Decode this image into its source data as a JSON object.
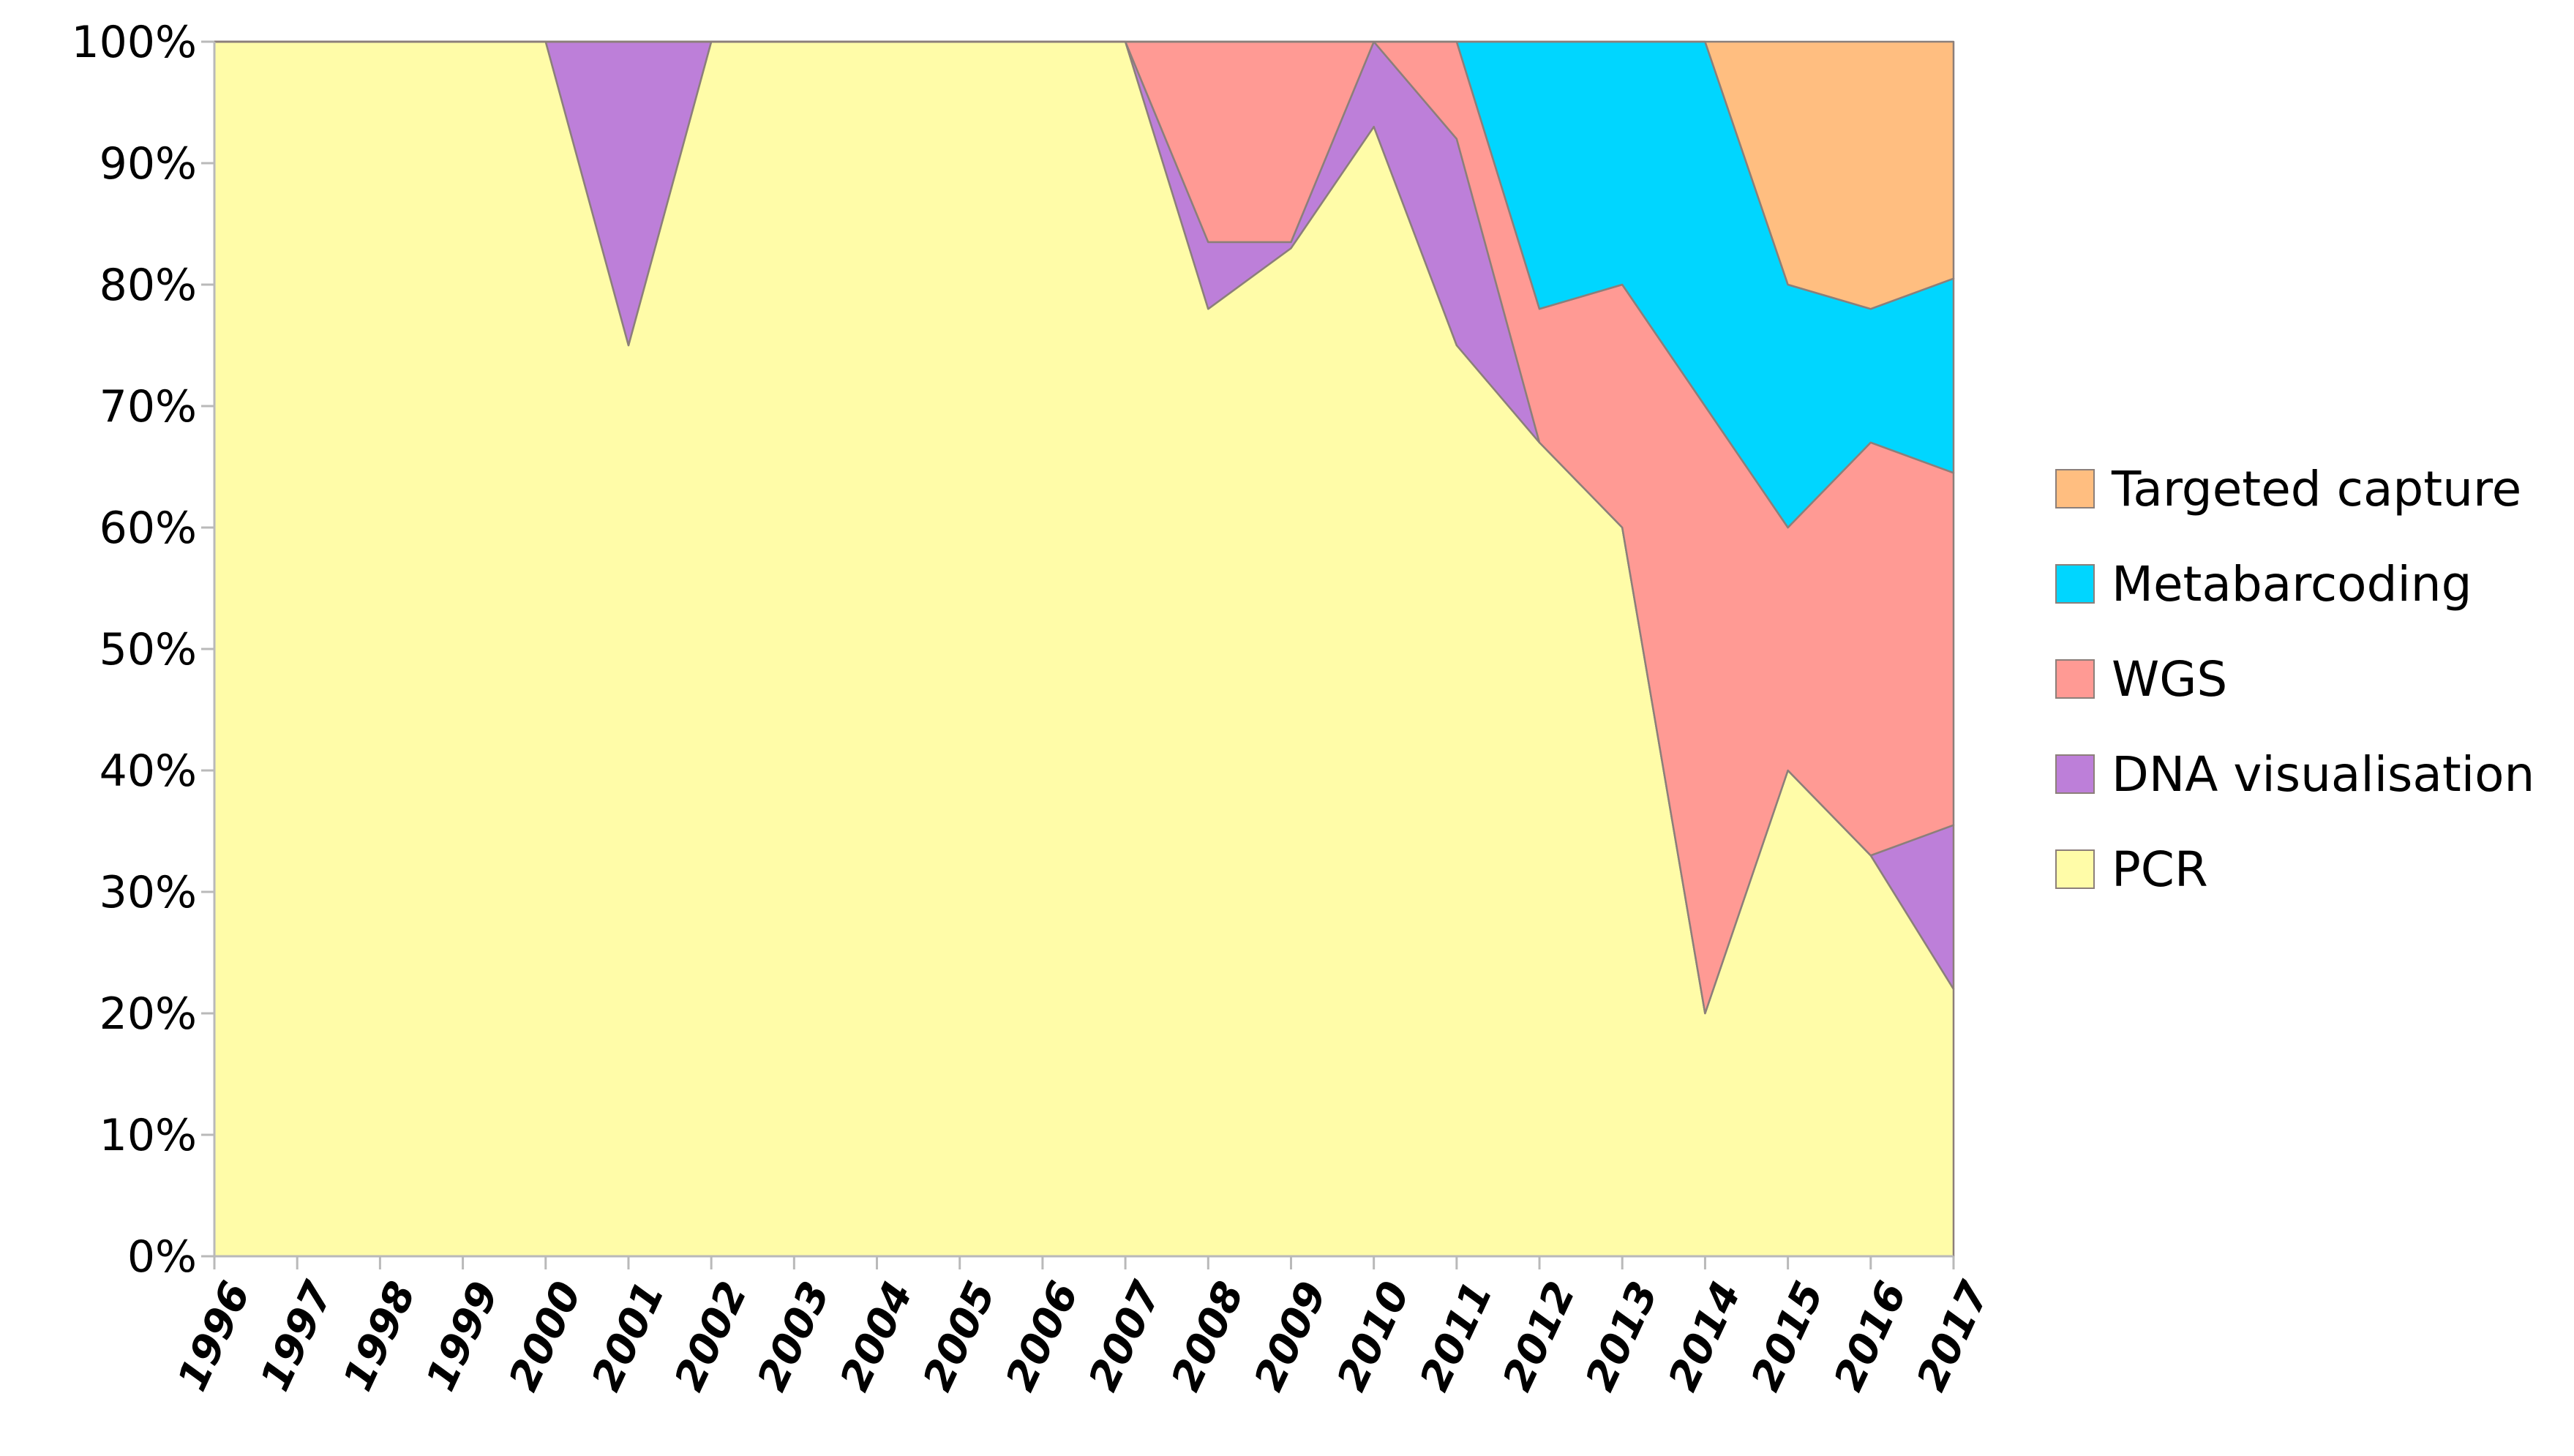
{
  "chart_data": {
    "type": "area",
    "stacked": true,
    "normalized": true,
    "title": "",
    "xlabel": "",
    "ylabel": "",
    "ylim": [
      0,
      100
    ],
    "grid": false,
    "legend_placement": "right",
    "x": [
      "1996",
      "1997",
      "1998",
      "1999",
      "2000",
      "2001",
      "2002",
      "2003",
      "2004",
      "2005",
      "2006",
      "2007",
      "2008",
      "2009",
      "2010",
      "2011",
      "2012",
      "2013",
      "2014",
      "2015",
      "2016",
      "2017"
    ],
    "y_ticks": [
      "0%",
      "10%",
      "20%",
      "30%",
      "40%",
      "50%",
      "60%",
      "70%",
      "80%",
      "90%",
      "100%"
    ],
    "series": [
      {
        "name": "PCR",
        "color": "#FFFCA8",
        "values": [
          100,
          100,
          100,
          100,
          100,
          75,
          100,
          100,
          100,
          100,
          100,
          100,
          78,
          83,
          93,
          75,
          67,
          60,
          20,
          40,
          33,
          22
        ]
      },
      {
        "name": "DNA visualisation",
        "color": "#BD7FD9",
        "values": [
          0,
          0,
          0,
          0,
          0,
          25,
          0,
          0,
          0,
          0,
          0,
          0,
          5.5,
          0.5,
          7,
          17,
          0,
          0,
          0,
          0,
          0,
          13.5
        ]
      },
      {
        "name": "WGS",
        "color": "#FF9A94",
        "values": [
          0,
          0,
          0,
          0,
          0,
          0,
          0,
          0,
          0,
          0,
          0,
          0,
          16.5,
          16.5,
          0,
          8,
          11,
          20,
          50,
          20,
          34,
          29
        ]
      },
      {
        "name": "Metabarcoding",
        "color": "#00D6FF",
        "values": [
          0,
          0,
          0,
          0,
          0,
          0,
          0,
          0,
          0,
          0,
          0,
          0,
          0,
          0,
          0,
          0,
          22,
          20,
          30,
          20,
          11,
          16
        ]
      },
      {
        "name": "Targeted capture",
        "color": "#FFBE80",
        "values": [
          0,
          0,
          0,
          0,
          0,
          0,
          0,
          0,
          0,
          0,
          0,
          0,
          0,
          0,
          0,
          0,
          0,
          0,
          0,
          20,
          22,
          19.5
        ]
      }
    ],
    "legend_order": [
      "Targeted capture",
      "Metabarcoding",
      "WGS",
      "DNA visualisation",
      "PCR"
    ]
  }
}
